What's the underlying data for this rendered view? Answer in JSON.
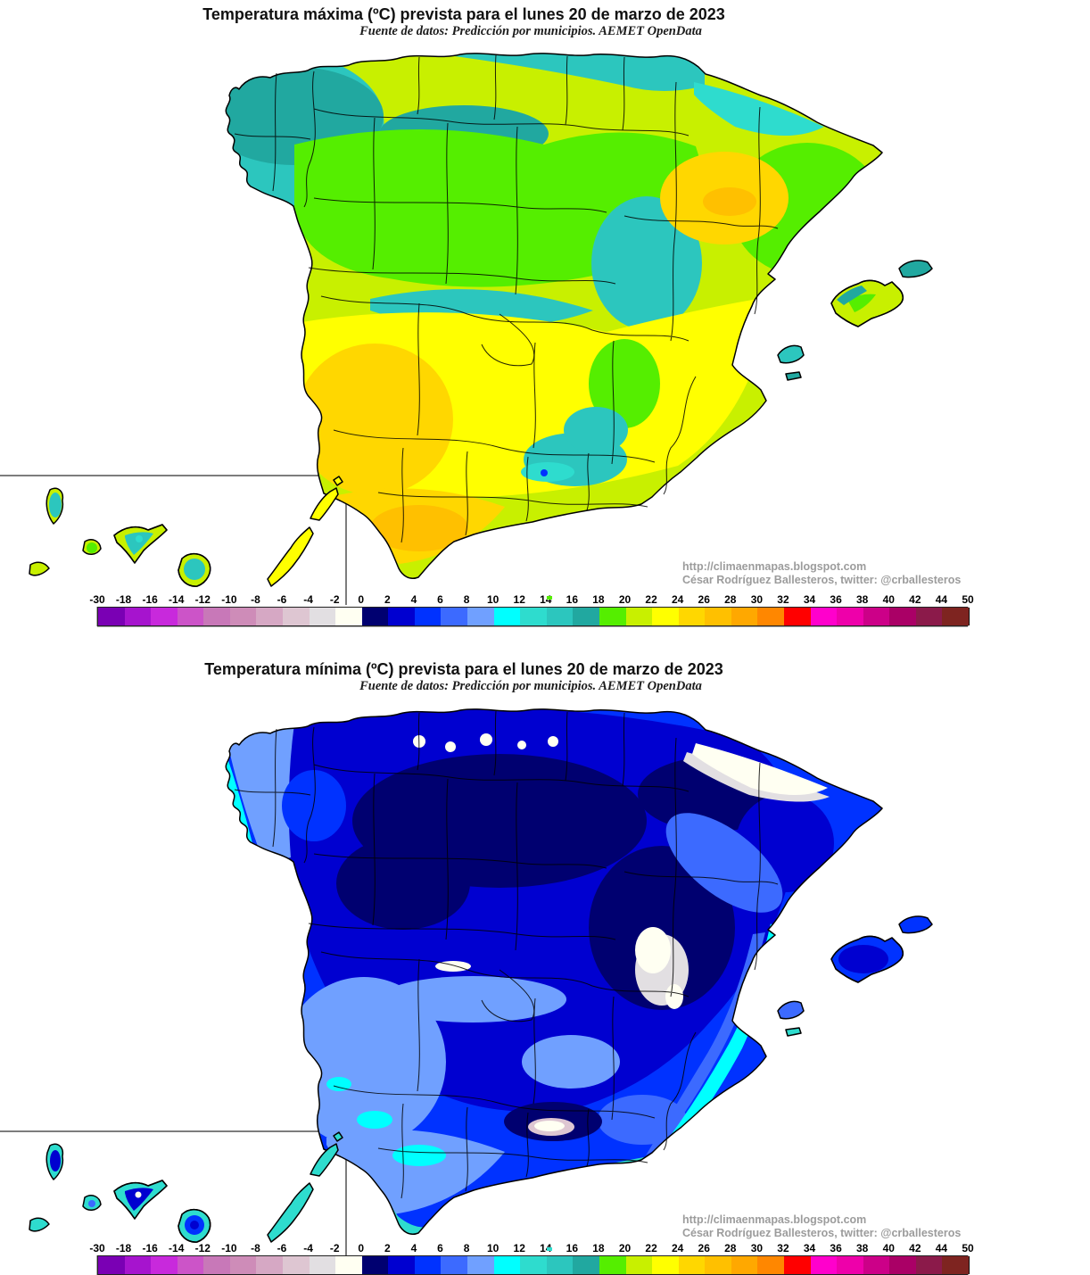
{
  "page": {
    "background": "#FFFFFF"
  },
  "maps": [
    {
      "id": "tmax",
      "title": "Temperatura máxima (ºC) prevista para el lunes 20 de marzo de 2023",
      "subtitle": "Fuente de datos: Predicción por municipios. AEMET OpenData",
      "attribution": {
        "line1": "http://climaenmapas.blogspot.com",
        "line2": "César Rodríguez Ballesteros, twitter: @crballesteros"
      },
      "map_reading_c": {
        "galicia": "14-18",
        "cordillera_cantabrica": "12-16",
        "meseta_norte": "18-22",
        "pirineos": "10-16",
        "valle_del_ebro": "22-28",
        "cataluna_litoral": "18-22",
        "meseta_sur": "22-24",
        "extremadura": "24-26",
        "valle_del_guadalquivir": "24-28",
        "litoral_mediterraneo": "18-24",
        "sierra_nevada": "4-14",
        "baleares": "16-22",
        "canarias": "14-24"
      },
      "alboran_color_index": 19
    },
    {
      "id": "tmin",
      "title": "Temperatura mínima (ºC) prevista para el lunes 20 de marzo de 2023",
      "subtitle": "Fuente de datos: Predicción por municipios. AEMET OpenData",
      "attribution": {
        "line1": "http://climaenmapas.blogspot.com",
        "line2": "César Rodríguez Ballesteros, twitter: @crballesteros"
      },
      "map_reading_c": {
        "pirineos": "-4-0",
        "cordillera_cantabrica": "-2-2",
        "meseta_norte": "0-4",
        "sistema_iberico": "-2-2",
        "interior_peninsular": "0-6",
        "galicia_litoral": "8-12",
        "extremadura": "6-10",
        "valle_del_guadalquivir": "6-12",
        "litoral_mediterraneo": "8-14",
        "sierra_nevada": "-4-0",
        "baleares": "2-8",
        "canarias": "10-16"
      },
      "alboran_color_index": 16
    }
  ],
  "legend": {
    "units": "ºC",
    "tick_labels": [
      "-30",
      "-18",
      "-16",
      "-14",
      "-12",
      "-10",
      "-8",
      "-6",
      "-4",
      "-2",
      "0",
      "2",
      "4",
      "6",
      "8",
      "10",
      "12",
      "14",
      "16",
      "18",
      "20",
      "22",
      "24",
      "26",
      "28",
      "30",
      "32",
      "34",
      "36",
      "38",
      "40",
      "42",
      "44",
      "50"
    ],
    "colors": [
      "#7A00B4",
      "#A614CE",
      "#C829DC",
      "#CC54C8",
      "#C878B8",
      "#CE8CB8",
      "#D6A8C4",
      "#DEC6D2",
      "#E2DFE2",
      "#FFFFF2",
      "#000070",
      "#0000D0",
      "#0032FF",
      "#3C6AFF",
      "#70A0FF",
      "#00FFFF",
      "#2EDCCE",
      "#2CC6BE",
      "#21A8A0",
      "#55EE00",
      "#C8F000",
      "#FFFF00",
      "#FFD700",
      "#FFC000",
      "#FFA800",
      "#FF8700",
      "#FF0000",
      "#FF00CC",
      "#EE00AA",
      "#CC0088",
      "#AA0066",
      "#8B1A4A",
      "#7E2420"
    ]
  }
}
